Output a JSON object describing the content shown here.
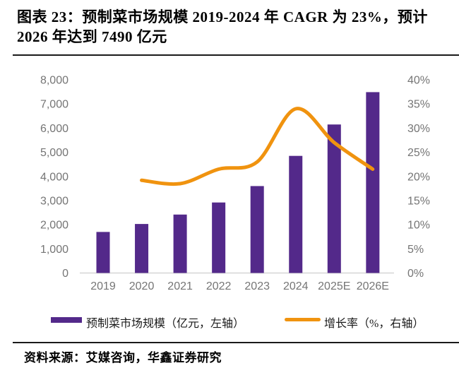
{
  "header": {
    "title": "图表 23：预制菜市场规模 2019-2024 年 CAGR 为 23%，预计 2026 年达到 7490 亿元"
  },
  "chart_data": {
    "type": "bar",
    "subtype": "combo-bar-line",
    "title": "预制菜市场规模 2019-2024 年 CAGR 为 23%，预计 2026 年达到 7490 亿元",
    "categories": [
      "2019",
      "2020",
      "2021",
      "2022",
      "2023",
      "2024",
      "2025E",
      "2026E"
    ],
    "series": [
      {
        "name": "预制菜市场规模（亿元，左轴）",
        "type": "bar",
        "axis": "left",
        "color": "#53298a",
        "values": [
          1700,
          2030,
          2420,
          2920,
          3600,
          4850,
          6150,
          7490
        ]
      },
      {
        "name": "增长率（%，右轴）",
        "type": "line",
        "axis": "right",
        "color": "#f0930f",
        "values": [
          null,
          19.2,
          18.5,
          21.5,
          23,
          34,
          27,
          21.5
        ]
      }
    ],
    "left_axis": {
      "min": 0,
      "max": 8000,
      "step": 1000,
      "tick_labels": [
        "0",
        "1,000",
        "2,000",
        "3,000",
        "4,000",
        "5,000",
        "6,000",
        "7,000",
        "8,000"
      ]
    },
    "right_axis": {
      "min": 0,
      "max": 40,
      "step": 5,
      "tick_labels": [
        "0%",
        "5%",
        "10%",
        "15%",
        "20%",
        "25%",
        "30%",
        "35%",
        "40%"
      ]
    },
    "grid": false,
    "legend_position": "bottom"
  },
  "legend": {
    "items": [
      {
        "label": "预制菜市场规模（亿元，左轴）",
        "color": "#53298a",
        "marker": "bar-swatch"
      },
      {
        "label": "增长率（%，右轴）",
        "color": "#f0930f",
        "marker": "line-swatch"
      }
    ]
  },
  "footer": {
    "source": "资料来源：艾媒咨询，华鑫证券研究"
  },
  "colors": {
    "bar": "#53298a",
    "line": "#f0930f",
    "axis_text": "#757575",
    "baseline": "#d6d6d6",
    "rule": "#1a1a1a",
    "title_text": "#000000"
  }
}
